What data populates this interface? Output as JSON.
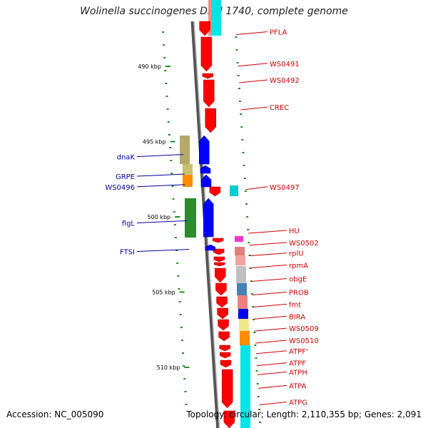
{
  "title": "Wolinella succinogenes DSM 1740, complete genome",
  "accession": "Accession: NC_005090",
  "topology": "Topology: circular; Length: 2,110,355 bp; Genes: 2,091",
  "colors": {
    "forward_gene": "#ff0000",
    "reverse_gene": "#0000ff",
    "label_forward": "#cc0000",
    "label_reverse": "#000099",
    "gc_dots": "#228b22"
  },
  "kbp_ticks": [
    {
      "label": "490 kbp",
      "pos": 490
    },
    {
      "label": "495 kbp",
      "pos": 495
    },
    {
      "label": "500 kbp",
      "pos": 500
    },
    {
      "label": "505 kbp",
      "pos": 505
    },
    {
      "label": "510 kbp",
      "pos": 510
    }
  ],
  "forward_labels": [
    {
      "name": "PFLA",
      "pos": 487.7
    },
    {
      "name": "WS0491",
      "pos": 489.8
    },
    {
      "name": "WS0492",
      "pos": 490.9
    },
    {
      "name": "CREC",
      "pos": 492.7
    },
    {
      "name": "WS0497",
      "pos": 498.0
    },
    {
      "name": "HU",
      "pos": 500.9
    },
    {
      "name": "WS0502",
      "pos": 501.7
    },
    {
      "name": "rplU",
      "pos": 502.4
    },
    {
      "name": "rpmA",
      "pos": 503.2
    },
    {
      "name": "obgE",
      "pos": 504.1
    },
    {
      "name": "PROB",
      "pos": 505.0
    },
    {
      "name": "fmt",
      "pos": 505.8
    },
    {
      "name": "BIRA",
      "pos": 506.6
    },
    {
      "name": "WS0509",
      "pos": 507.4
    },
    {
      "name": "WS0510",
      "pos": 508.2
    },
    {
      "name": "ATPF'",
      "pos": 508.9
    },
    {
      "name": "ATPF",
      "pos": 509.7
    },
    {
      "name": "ATPH",
      "pos": 510.3
    },
    {
      "name": "ATPA",
      "pos": 511.2
    },
    {
      "name": "ATPG",
      "pos": 512.3
    }
  ],
  "reverse_labels": [
    {
      "name": "dnaK",
      "pos": 496.0
    },
    {
      "name": "GRPE",
      "pos": 497.3
    },
    {
      "name": "WS0496",
      "pos": 498.0
    },
    {
      "name": "flgL",
      "pos": 500.4
    },
    {
      "name": "FTSI",
      "pos": 502.3
    }
  ]
}
